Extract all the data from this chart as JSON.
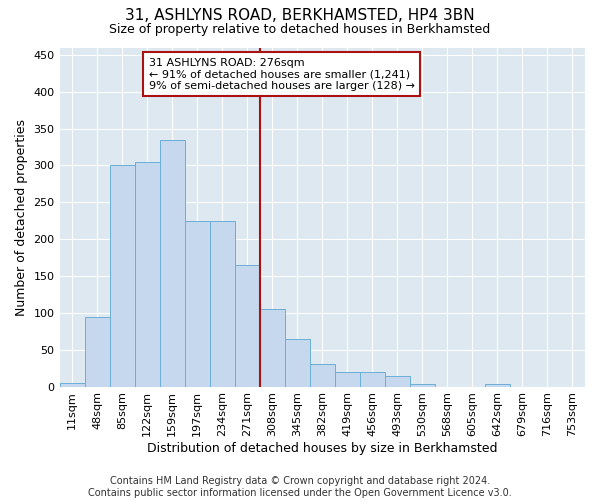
{
  "title": "31, ASHLYNS ROAD, BERKHAMSTED, HP4 3BN",
  "subtitle": "Size of property relative to detached houses in Berkhamsted",
  "xlabel": "Distribution of detached houses by size in Berkhamsted",
  "ylabel": "Number of detached properties",
  "categories": [
    "11sqm",
    "48sqm",
    "85sqm",
    "122sqm",
    "159sqm",
    "197sqm",
    "234sqm",
    "271sqm",
    "308sqm",
    "345sqm",
    "382sqm",
    "419sqm",
    "456sqm",
    "493sqm",
    "530sqm",
    "568sqm",
    "605sqm",
    "642sqm",
    "679sqm",
    "716sqm",
    "753sqm"
  ],
  "values": [
    5,
    95,
    300,
    305,
    335,
    225,
    225,
    165,
    105,
    65,
    30,
    20,
    20,
    15,
    3,
    0,
    0,
    3,
    0,
    0,
    0
  ],
  "bar_color": "#c5d8ee",
  "bar_edge_color": "#6aaed6",
  "vline_x_index": 7,
  "vline_color": "#aa1111",
  "annotation_text": "31 ASHLYNS ROAD: 276sqm\n← 91% of detached houses are smaller (1,241)\n9% of semi-detached houses are larger (128) →",
  "annotation_box_color": "#aa1111",
  "ylim": [
    0,
    460
  ],
  "yticks": [
    0,
    50,
    100,
    150,
    200,
    250,
    300,
    350,
    400,
    450
  ],
  "bg_color": "#dde8f0",
  "grid_color": "#ffffff",
  "footer": "Contains HM Land Registry data © Crown copyright and database right 2024.\nContains public sector information licensed under the Open Government Licence v3.0.",
  "title_fontsize": 11,
  "subtitle_fontsize": 9,
  "xlabel_fontsize": 9,
  "ylabel_fontsize": 9,
  "footer_fontsize": 7,
  "tick_fontsize": 8,
  "annot_fontsize": 8
}
